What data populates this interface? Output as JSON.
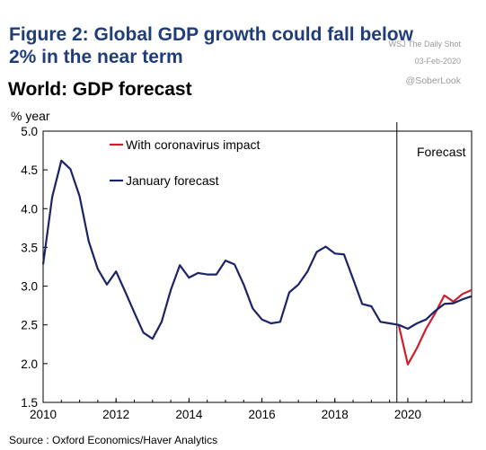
{
  "header": {
    "figure_title": "Figure 2: Global GDP growth could fall below 2% in the near term",
    "chart_title": "World: GDP forecast",
    "watermark_1": "WSJ The Daily Shot",
    "watermark_2": "03-Feb-2020",
    "watermark_3": "@SoberLook"
  },
  "footer": {
    "source": "Source : Oxford Economics/Haver Analytics"
  },
  "colors": {
    "january": "#1a2466",
    "corona": "#cc1f2b",
    "forecast_line": "#000000"
  },
  "chart_data": {
    "type": "line",
    "ylabel": "% year",
    "ylim": [
      1.5,
      5.0
    ],
    "xlim": [
      2010,
      2021.75
    ],
    "yticks": [
      "5.0",
      "4.5",
      "4.0",
      "3.5",
      "3.0",
      "2.5",
      "2.0",
      "1.5"
    ],
    "xticks": [
      "2010",
      "2012",
      "2014",
      "2016",
      "2018",
      "2020"
    ],
    "forecast_start": 2019.7,
    "forecast_label": "Forecast",
    "legend_position": "top-left",
    "series": [
      {
        "name": "With coronavirus impact",
        "x": [
          2019.75,
          2020.0,
          2020.25,
          2020.5,
          2020.75,
          2021.0,
          2021.25,
          2021.5,
          2021.75
        ],
        "y": [
          2.5,
          1.99,
          2.2,
          2.45,
          2.65,
          2.88,
          2.8,
          2.9,
          2.95
        ]
      },
      {
        "name": "January forecast",
        "x": [
          2010.0,
          2010.25,
          2010.5,
          2010.75,
          2011.0,
          2011.25,
          2011.5,
          2011.75,
          2012.0,
          2012.25,
          2012.5,
          2012.75,
          2013.0,
          2013.25,
          2013.5,
          2013.75,
          2014.0,
          2014.25,
          2014.5,
          2014.75,
          2015.0,
          2015.25,
          2015.5,
          2015.75,
          2016.0,
          2016.25,
          2016.5,
          2016.75,
          2017.0,
          2017.25,
          2017.5,
          2017.75,
          2018.0,
          2018.25,
          2018.5,
          2018.75,
          2019.0,
          2019.25,
          2019.5,
          2019.75,
          2020.0,
          2020.25,
          2020.5,
          2020.75,
          2021.0,
          2021.25,
          2021.5,
          2021.75
        ],
        "y": [
          3.28,
          4.15,
          4.62,
          4.51,
          4.16,
          3.58,
          3.22,
          3.02,
          3.19,
          2.93,
          2.66,
          2.4,
          2.32,
          2.54,
          2.95,
          3.27,
          3.11,
          3.17,
          3.15,
          3.15,
          3.33,
          3.28,
          3.02,
          2.71,
          2.57,
          2.52,
          2.54,
          2.92,
          3.02,
          3.19,
          3.44,
          3.51,
          3.42,
          3.41,
          3.09,
          2.77,
          2.74,
          2.54,
          2.52,
          2.5,
          2.45,
          2.52,
          2.57,
          2.68,
          2.77,
          2.78,
          2.83,
          2.87
        ]
      }
    ]
  }
}
